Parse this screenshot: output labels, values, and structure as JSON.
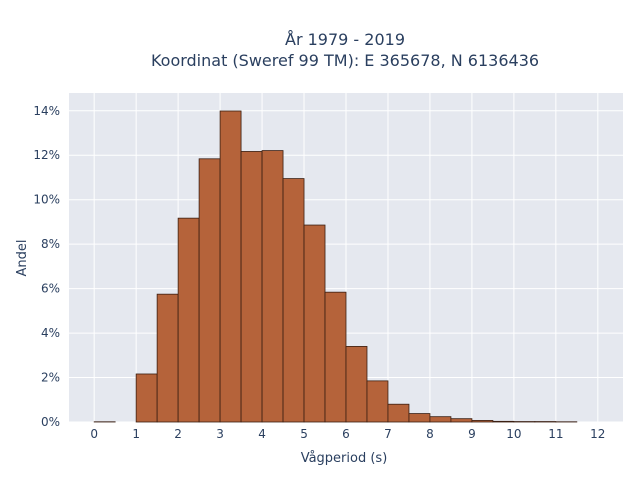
{
  "chart_data": {
    "type": "bar",
    "title_line1": "År 1979 - 2019",
    "title_line2": "Koordinat (Sweref 99 TM): E 365678, N 6136436",
    "xlabel": "Vågperiod (s)",
    "ylabel": "Andel",
    "bin_width": 0.5,
    "bin_starts": [
      0,
      0.5,
      1,
      1.5,
      2,
      2.5,
      3,
      3.5,
      4,
      4.5,
      5,
      5.5,
      6,
      6.5,
      7,
      7.5,
      8,
      8.5,
      9,
      9.5,
      10,
      10.5,
      11,
      11.5
    ],
    "values": [
      0.0001,
      0,
      0.0216,
      0.0575,
      0.0917,
      0.1184,
      0.1399,
      0.1217,
      0.1221,
      0.1095,
      0.0886,
      0.0584,
      0.034,
      0.0185,
      0.008,
      0.0038,
      0.0024,
      0.0015,
      0.0007,
      0.0003,
      0.0002,
      0.0002,
      0.0001,
      0
    ],
    "xlim": [
      -0.6,
      12.6
    ],
    "ylim": [
      0,
      0.148
    ],
    "x_ticks": [
      0,
      1,
      2,
      3,
      4,
      5,
      6,
      7,
      8,
      9,
      10,
      11,
      12
    ],
    "x_tick_labels": [
      "0",
      "1",
      "2",
      "3",
      "4",
      "5",
      "6",
      "7",
      "8",
      "9",
      "10",
      "11",
      "12"
    ],
    "y_ticks": [
      0,
      0.02,
      0.04,
      0.06,
      0.08,
      0.1,
      0.12,
      0.14
    ],
    "y_tick_labels": [
      "0%",
      "2%",
      "4%",
      "6%",
      "8%",
      "10%",
      "12%",
      "14%"
    ],
    "grid": true,
    "bar_color": "#b5633a",
    "bar_edge_color": "#3b1f12",
    "plot_bg": "#e5e8ef"
  }
}
